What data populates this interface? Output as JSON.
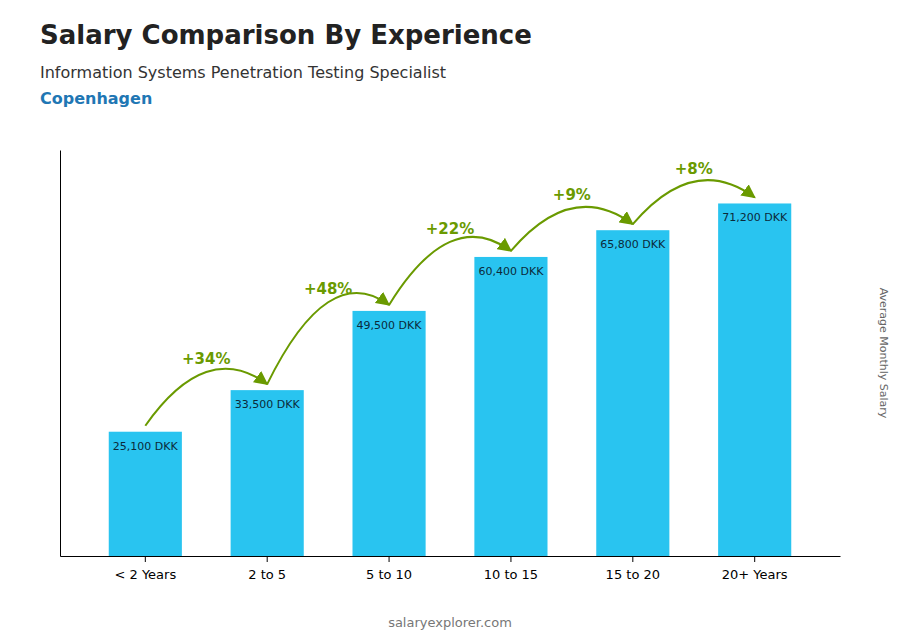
{
  "chart_data": {
    "type": "bar",
    "title": "Salary Comparison By Experience",
    "subtitle": [
      "Information Systems Penetration Testing Specialist",
      "Copenhagen"
    ],
    "ylabel": "Average Monthly Salary",
    "caption": "salaryexplorer.com",
    "categories": [
      "< 2 Years",
      "2 to 5",
      "5 to 10",
      "10 to 15",
      "15 to 20",
      "20+ Years"
    ],
    "values": [
      25100,
      33500,
      49500,
      60400,
      65800,
      71200
    ],
    "value_labels": [
      "25,100 DKK",
      "33,500 DKK",
      "49,500 DKK",
      "60,400 DKK",
      "65,800 DKK",
      "71,200 DKK"
    ],
    "data_labels": true,
    "annotations": [
      "+34%",
      "+48%",
      "+22%",
      "+9%",
      "+8%"
    ],
    "color": "#29C4F0",
    "ylim": [
      0,
      82000
    ],
    "tick_labels": "x",
    "grid": false
  }
}
